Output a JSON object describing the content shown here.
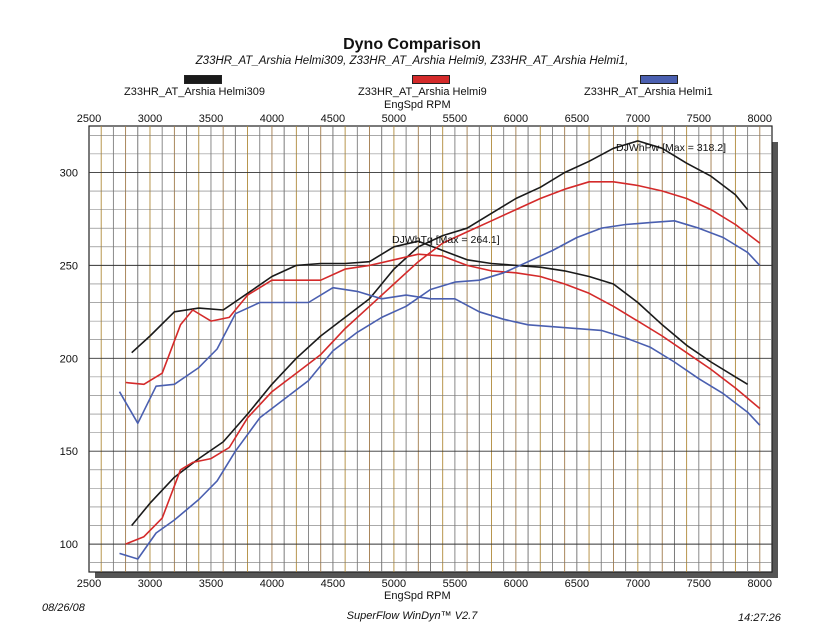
{
  "chart_data": {
    "type": "line",
    "title": "Dyno Comparison",
    "subtitle": "Z33HR_AT_Arshia Helmi309, Z33HR_AT_Arshia Helmi9, Z33HR_AT_Arshia Helmi1,",
    "xlabel": "EngSpd  RPM",
    "ylabel": "",
    "xlim": [
      2500,
      8100
    ],
    "ylim": [
      85,
      325
    ],
    "x_ticks": [
      2500,
      3000,
      3500,
      4000,
      4500,
      5000,
      5500,
      6000,
      6500,
      7000,
      7500,
      8000
    ],
    "y_ticks": [
      100,
      150,
      200,
      250,
      300
    ],
    "grid": true,
    "legend_position": "top",
    "annotations": [
      {
        "text": "DJWhPw [Max = 318.2]",
        "x": 6950,
        "y": 318
      },
      {
        "text": "DJWhTq [Max = 264.1]",
        "x": 5050,
        "y": 264
      }
    ],
    "series": [
      {
        "name": "Z33HR_AT_Arshia Helmi309",
        "color": "#1a1a1a",
        "group": "torque",
        "x": [
          2850,
          3000,
          3200,
          3400,
          3600,
          3800,
          4000,
          4200,
          4400,
          4600,
          4800,
          5000,
          5200,
          5400,
          5600,
          5800,
          6000,
          6200,
          6400,
          6600,
          6800,
          7000,
          7200,
          7400,
          7600,
          7800,
          7900
        ],
        "y": [
          203,
          212,
          225,
          227,
          226,
          235,
          244,
          250,
          251,
          251,
          252,
          260,
          263,
          258,
          253,
          251,
          250,
          249,
          247,
          244,
          240,
          230,
          218,
          207,
          198,
          190,
          186
        ]
      },
      {
        "name": "Z33HR_AT_Arshia Helmi309",
        "color": "#1a1a1a",
        "group": "power",
        "x": [
          2850,
          3000,
          3200,
          3400,
          3600,
          3800,
          4000,
          4200,
          4400,
          4600,
          4800,
          5000,
          5200,
          5400,
          5600,
          5800,
          6000,
          6200,
          6400,
          6600,
          6800,
          7000,
          7200,
          7400,
          7600,
          7800,
          7900
        ],
        "y": [
          110,
          122,
          136,
          146,
          155,
          170,
          186,
          200,
          212,
          222,
          232,
          248,
          260,
          266,
          270,
          278,
          286,
          292,
          300,
          306,
          313,
          317,
          313,
          305,
          298,
          288,
          280
        ]
      },
      {
        "name": "Z33HR_AT_Arshia Helmi9",
        "color": "#d42a2a",
        "group": "torque",
        "x": [
          2800,
          2950,
          3100,
          3250,
          3350,
          3500,
          3650,
          3800,
          4000,
          4200,
          4400,
          4600,
          4800,
          5000,
          5200,
          5400,
          5600,
          5800,
          6000,
          6200,
          6400,
          6600,
          6800,
          7000,
          7200,
          7400,
          7600,
          7800,
          8000
        ],
        "y": [
          187,
          186,
          192,
          218,
          226,
          220,
          222,
          234,
          242,
          242,
          242,
          248,
          250,
          253,
          256,
          255,
          250,
          247,
          246,
          244,
          240,
          235,
          228,
          220,
          212,
          203,
          194,
          184,
          173
        ]
      },
      {
        "name": "Z33HR_AT_Arshia Helmi9",
        "color": "#d42a2a",
        "group": "power",
        "x": [
          2800,
          2950,
          3100,
          3250,
          3350,
          3500,
          3650,
          3800,
          4000,
          4200,
          4400,
          4600,
          4800,
          5000,
          5200,
          5400,
          5600,
          5800,
          6000,
          6200,
          6400,
          6600,
          6800,
          7000,
          7200,
          7400,
          7600,
          7800,
          8000
        ],
        "y": [
          100,
          104,
          114,
          140,
          144,
          146,
          152,
          168,
          182,
          192,
          202,
          216,
          228,
          240,
          252,
          262,
          268,
          274,
          280,
          286,
          291,
          295,
          295,
          293,
          290,
          286,
          280,
          272,
          262
        ]
      },
      {
        "name": "Z33HR_AT_Arshia Helmi1",
        "color": "#4a5fb0",
        "group": "torque",
        "x": [
          2750,
          2900,
          3050,
          3200,
          3400,
          3550,
          3700,
          3900,
          4100,
          4300,
          4500,
          4700,
          4900,
          5100,
          5300,
          5500,
          5700,
          5900,
          6100,
          6300,
          6500,
          6700,
          6900,
          7100,
          7300,
          7500,
          7700,
          7900,
          8000
        ],
        "y": [
          182,
          165,
          185,
          186,
          195,
          205,
          224,
          230,
          230,
          230,
          238,
          236,
          232,
          234,
          232,
          232,
          225,
          221,
          218,
          217,
          216,
          215,
          211,
          206,
          198,
          189,
          181,
          171,
          164
        ]
      },
      {
        "name": "Z33HR_AT_Arshia Helmi1",
        "color": "#4a5fb0",
        "group": "power",
        "x": [
          2750,
          2900,
          3050,
          3200,
          3400,
          3550,
          3700,
          3900,
          4100,
          4300,
          4500,
          4700,
          4900,
          5100,
          5300,
          5500,
          5700,
          5900,
          6100,
          6300,
          6500,
          6700,
          6900,
          7100,
          7300,
          7500,
          7700,
          7900,
          8000
        ],
        "y": [
          95,
          92,
          106,
          113,
          124,
          134,
          150,
          168,
          178,
          188,
          204,
          214,
          222,
          228,
          237,
          241,
          242,
          246,
          252,
          258,
          265,
          270,
          272,
          273,
          274,
          270,
          265,
          257,
          250
        ]
      }
    ]
  },
  "legend": [
    {
      "label": "Z33HR_AT_Arshia Helmi309",
      "color": "#1a1a1a"
    },
    {
      "label": "Z33HR_AT_Arshia Helmi9",
      "color": "#d42a2a"
    },
    {
      "label": "Z33HR_AT_Arshia Helmi1",
      "color": "#4a5fb0"
    }
  ],
  "footer": {
    "date": "08/26/08",
    "software": "SuperFlow WinDyn™ V2.7",
    "time": "14:27:26"
  }
}
